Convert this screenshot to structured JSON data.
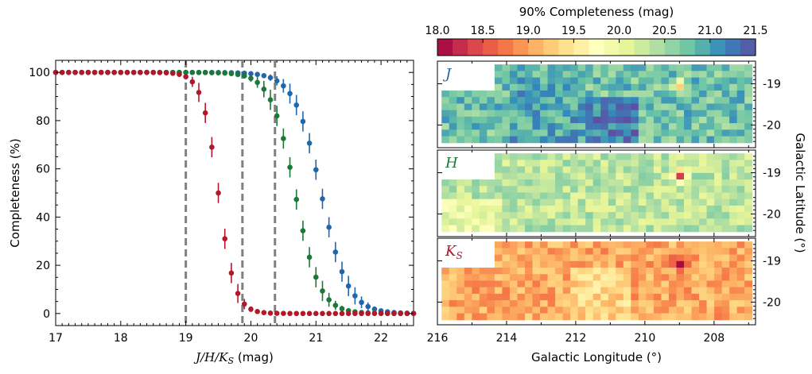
{
  "chart_data": [
    {
      "type": "scatter",
      "title": "",
      "xlabel_math": "J/H/K",
      "xlabel_math_sub": "S",
      "xlabel_unit": " (mag)",
      "ylabel": "Completeness (%)",
      "xlim": [
        17,
        22.5
      ],
      "ylim": [
        -5,
        105
      ],
      "xticks": [
        "17",
        "18",
        "19",
        "20",
        "21",
        "22"
      ],
      "yticks": [
        "0",
        "20",
        "40",
        "60",
        "80",
        "100"
      ],
      "vlines": [
        19.0,
        19.87,
        20.37
      ],
      "series": [
        {
          "name": "J",
          "color": "#2166ac",
          "mid": 21.08,
          "width": 0.205,
          "x": [
            17.0,
            17.1,
            17.2,
            17.3,
            17.4,
            17.5,
            17.6,
            17.7,
            17.8,
            17.9,
            18.0,
            18.1,
            18.2,
            18.3,
            18.4,
            18.5,
            18.6,
            18.7,
            18.8,
            18.9,
            19.0,
            19.1,
            19.2,
            19.3,
            19.4,
            19.5,
            19.6,
            19.7,
            19.8,
            19.9,
            20.0,
            20.1,
            20.2,
            20.3,
            20.4,
            20.5,
            20.6,
            20.7,
            20.8,
            20.9,
            21.0,
            21.1,
            21.2,
            21.3,
            21.4,
            21.5,
            21.6,
            21.7,
            21.8,
            21.9,
            22.0,
            22.1,
            22.2,
            22.3,
            22.4,
            22.5
          ]
        },
        {
          "name": "H",
          "color": "#1b7837",
          "mid": 20.68,
          "width": 0.185,
          "x": [
            17.0,
            17.1,
            17.2,
            17.3,
            17.4,
            17.5,
            17.6,
            17.7,
            17.8,
            17.9,
            18.0,
            18.1,
            18.2,
            18.3,
            18.4,
            18.5,
            18.6,
            18.7,
            18.8,
            18.9,
            19.0,
            19.1,
            19.2,
            19.3,
            19.4,
            19.5,
            19.6,
            19.7,
            19.8,
            19.9,
            20.0,
            20.1,
            20.2,
            20.3,
            20.4,
            20.5,
            20.6,
            20.7,
            20.8,
            20.9,
            21.0,
            21.1,
            21.2,
            21.3,
            21.4,
            21.5,
            21.6,
            21.7,
            21.8,
            21.9,
            22.0,
            22.1,
            22.2,
            22.3,
            22.4,
            22.5
          ]
        },
        {
          "name": "K_S",
          "color": "#b2182b",
          "mid": 19.5,
          "width": 0.125,
          "x": [
            17.0,
            17.1,
            17.2,
            17.3,
            17.4,
            17.5,
            17.6,
            17.7,
            17.8,
            17.9,
            18.0,
            18.1,
            18.2,
            18.3,
            18.4,
            18.5,
            18.6,
            18.7,
            18.8,
            18.9,
            19.0,
            19.1,
            19.2,
            19.3,
            19.4,
            19.5,
            19.6,
            19.7,
            19.8,
            19.9,
            20.0,
            20.1,
            20.2,
            20.3,
            20.4,
            20.5,
            20.6,
            20.7,
            20.8,
            20.9,
            21.0,
            21.1,
            21.2,
            21.3,
            21.4,
            21.5,
            21.6,
            21.7,
            21.8,
            21.9,
            22.0,
            22.1,
            22.2,
            22.3,
            22.4,
            22.5
          ]
        }
      ]
    },
    {
      "type": "heatmap",
      "colorbar_title": "90% Completeness (mag)",
      "colorbar_ticks": [
        "18.0",
        "18.5",
        "19.0",
        "19.5",
        "20.0",
        "20.5",
        "21.0",
        "21.5"
      ],
      "colorbar_range": [
        18.0,
        21.5
      ],
      "colormap": [
        "#9e0142",
        "#d53e4f",
        "#f46d43",
        "#fdae61",
        "#fee08b",
        "#ffffbf",
        "#e6f598",
        "#abdda4",
        "#66c2a5",
        "#3288bd",
        "#5e4fa2"
      ],
      "xlabel": "Galactic Longitude (°)",
      "ylabel": "Galactic Latitude (°)",
      "xticks": [
        "216",
        "214",
        "212",
        "210",
        "208"
      ],
      "xlim": [
        216,
        206.8
      ],
      "yticks": [
        "-19",
        "-20"
      ],
      "ylim": [
        -20.55,
        -18.45
      ],
      "panels": [
        {
          "band_letter": "J",
          "band_sub": "",
          "label_color": "#2166ac",
          "base": 20.75,
          "spread": 0.35,
          "hotspot": 19.2
        },
        {
          "band_letter": "H",
          "band_sub": "",
          "label_color": "#1b7837",
          "base": 20.35,
          "spread": 0.3,
          "hotspot": 18.2
        },
        {
          "band_letter": "K",
          "band_sub": "S",
          "label_color": "#b2182b",
          "base": 19.05,
          "spread": 0.3,
          "hotspot": 18.0
        }
      ]
    }
  ]
}
